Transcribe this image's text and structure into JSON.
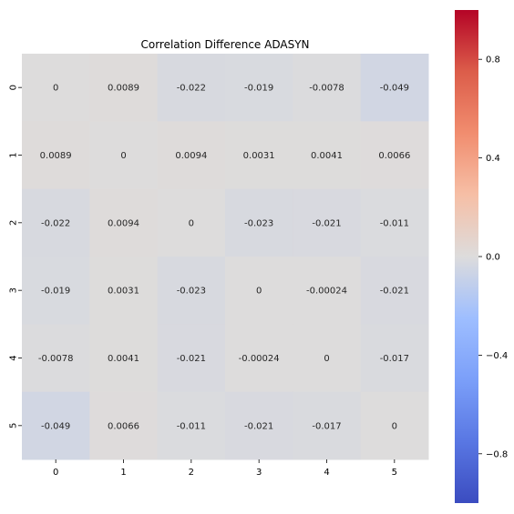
{
  "chart_data": {
    "type": "heatmap",
    "title": "Correlation Difference ADASYN",
    "x_labels": [
      "0",
      "1",
      "2",
      "3",
      "4",
      "5"
    ],
    "y_labels": [
      "0",
      "1",
      "2",
      "3",
      "4",
      "5"
    ],
    "values": [
      [
        0,
        0.0089,
        -0.022,
        -0.019,
        -0.0078,
        -0.049
      ],
      [
        0.0089,
        0,
        0.0094,
        0.0031,
        0.0041,
        0.0066
      ],
      [
        -0.022,
        0.0094,
        0,
        -0.023,
        -0.021,
        -0.011
      ],
      [
        -0.019,
        0.0031,
        -0.023,
        0,
        -0.00024,
        -0.021
      ],
      [
        -0.0078,
        0.0041,
        -0.021,
        -0.00024,
        0,
        -0.017
      ],
      [
        -0.049,
        0.0066,
        -0.011,
        -0.021,
        -0.017,
        0
      ]
    ],
    "value_labels": [
      [
        "0",
        "0.0089",
        "-0.022",
        "-0.019",
        "-0.0078",
        "-0.049"
      ],
      [
        "0.0089",
        "0",
        "0.0094",
        "0.0031",
        "0.0041",
        "0.0066"
      ],
      [
        "-0.022",
        "0.0094",
        "0",
        "-0.023",
        "-0.021",
        "-0.011"
      ],
      [
        "-0.019",
        "0.0031",
        "-0.023",
        "0",
        "-0.00024",
        "-0.021"
      ],
      [
        "-0.0078",
        "0.0041",
        "-0.021",
        "-0.00024",
        "0",
        "-0.017"
      ],
      [
        "-0.049",
        "0.0066",
        "-0.011",
        "-0.021",
        "-0.017",
        "0"
      ]
    ],
    "colormap": "coolwarm",
    "vmin": -1,
    "vmax": 1,
    "colorbar_ticks": [
      0.8,
      0.4,
      0.0,
      -0.4,
      -0.8
    ],
    "colorbar_tick_labels": [
      "0.8",
      "0.4",
      "0.0",
      "−0.4",
      "−0.8"
    ]
  }
}
